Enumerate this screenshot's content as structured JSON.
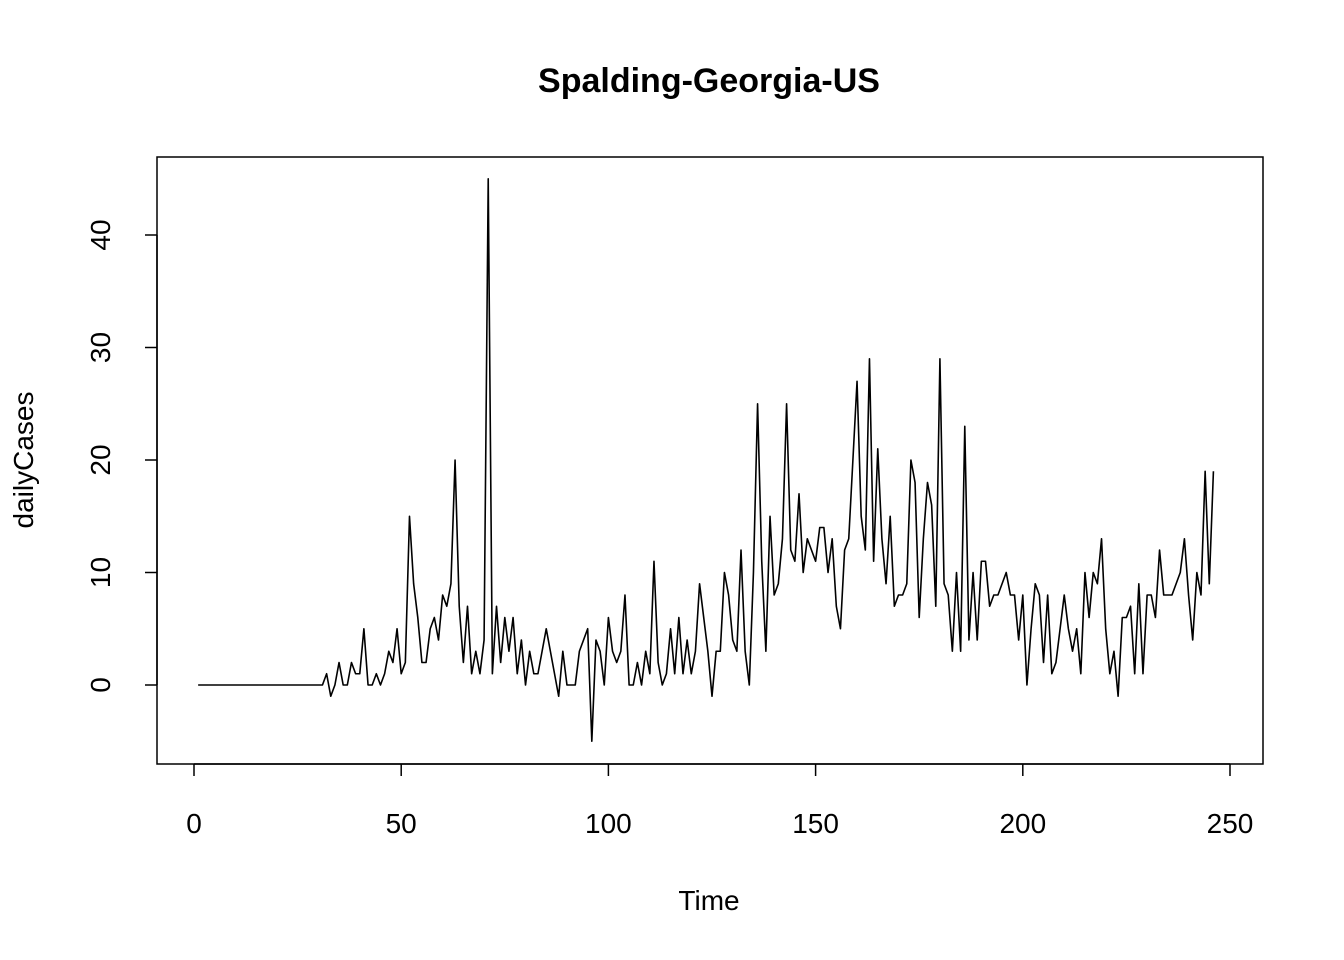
{
  "chart_data": {
    "type": "line",
    "title": "Spalding-Georgia-US",
    "xlabel": "Time",
    "ylabel": "dailyCases",
    "xlim": [
      1,
      248
    ],
    "ylim": [
      -5,
      45
    ],
    "x_ticks": [
      0,
      50,
      100,
      150,
      200,
      250
    ],
    "y_ticks": [
      0,
      10,
      20,
      30,
      40
    ],
    "grid": false,
    "legend": "none",
    "line_color": "#000000",
    "series": [
      {
        "x_start": 1,
        "values": [
          0,
          0,
          0,
          0,
          0,
          0,
          0,
          0,
          0,
          0,
          0,
          0,
          0,
          0,
          0,
          0,
          0,
          0,
          0,
          0,
          0,
          0,
          0,
          0,
          0,
          0,
          0,
          0,
          0,
          0,
          0,
          1,
          -1,
          0,
          2,
          0,
          0,
          2,
          1,
          1,
          5,
          0,
          0,
          1,
          0,
          1,
          3,
          2,
          5,
          1,
          2,
          15,
          9,
          6,
          2,
          2,
          5,
          6,
          4,
          8,
          7,
          9,
          20,
          7,
          2,
          7,
          1,
          3,
          1,
          4,
          45,
          1,
          7,
          2,
          6,
          3,
          6,
          1,
          4,
          0,
          3,
          1,
          1,
          3,
          5,
          3,
          1,
          -1,
          3,
          0,
          0,
          0,
          3,
          4,
          5,
          -5,
          4,
          3,
          0,
          6,
          3,
          2,
          3,
          8,
          0,
          0,
          2,
          0,
          3,
          1,
          11,
          2,
          0,
          1,
          5,
          1,
          6,
          1,
          4,
          1,
          3,
          9,
          6,
          3,
          -1,
          3,
          3,
          10,
          8,
          4,
          3,
          12,
          3,
          0,
          10,
          25,
          11,
          3,
          15,
          8,
          9,
          13,
          25,
          12,
          11,
          17,
          10,
          13,
          12,
          11,
          14,
          14,
          10,
          13,
          7,
          5,
          12,
          13,
          20,
          27,
          15,
          12,
          29,
          11,
          21,
          13,
          9,
          15,
          7,
          8,
          8,
          9,
          20,
          18,
          6,
          13,
          18,
          16,
          7,
          29,
          9,
          8,
          3,
          10,
          3,
          23,
          4,
          10,
          4,
          11,
          11,
          7,
          8,
          8,
          9,
          10,
          8,
          8,
          4,
          8,
          0,
          5,
          9,
          8,
          2,
          8,
          1,
          2,
          5,
          8,
          5,
          3,
          5,
          1,
          10,
          6,
          10,
          9,
          13,
          5,
          1,
          3,
          -1,
          6,
          6,
          7,
          1,
          9,
          1,
          8,
          8,
          6,
          12,
          8,
          8,
          8,
          9,
          10,
          13,
          8,
          4,
          10,
          8,
          19,
          9,
          19
        ]
      }
    ]
  }
}
